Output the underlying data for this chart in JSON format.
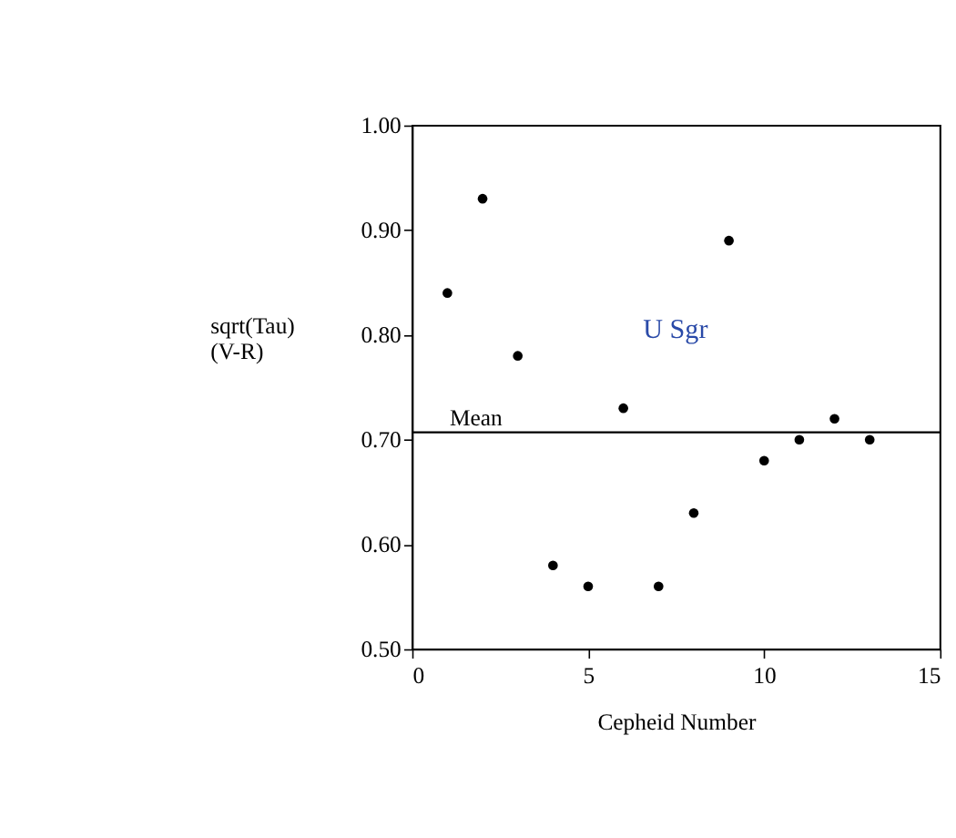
{
  "chart_data": {
    "type": "scatter",
    "xlabel": "Cepheid Number",
    "ylabel": "sqrt(Tau)\n(V-R)",
    "x": [
      1,
      2,
      3,
      4,
      5,
      6,
      7,
      8,
      9,
      10,
      11,
      12,
      13
    ],
    "series": [
      {
        "color": "#000000",
        "values": [
          0.84,
          0.93,
          0.78,
          0.58,
          0.56,
          0.73,
          0.56,
          0.63,
          0.89,
          0.68,
          0.7,
          0.72,
          0.7
        ]
      }
    ],
    "marker": "circle",
    "grid": false,
    "xlim": [
      0,
      15
    ],
    "xticks": [
      0,
      5,
      10,
      15
    ],
    "ylim": [
      0.5,
      1.0
    ],
    "yticks": [
      {
        "value": 0.5,
        "label": "0.50"
      },
      {
        "value": 0.6,
        "label": "0.60"
      },
      {
        "value": 0.7,
        "label": "0.70"
      },
      {
        "value": 0.8,
        "label": "0.80"
      },
      {
        "value": 0.9,
        "label": "0.90"
      },
      {
        "value": 1.0,
        "label": "1.00"
      }
    ],
    "ref_lines": [
      {
        "axis": "y",
        "value": 0.707,
        "label": "Mean",
        "color": "#000000"
      }
    ],
    "annotations": [
      "U  Sgr"
    ]
  }
}
